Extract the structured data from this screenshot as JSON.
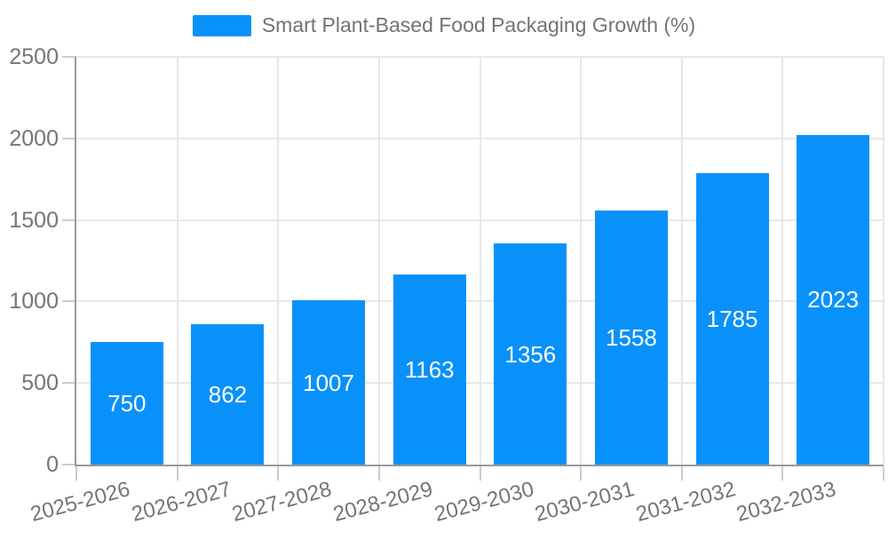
{
  "legend": {
    "label": "Smart Plant-Based Food Packaging Growth (%)"
  },
  "chart_data": {
    "type": "bar",
    "title": "Smart Plant-Based Food Packaging Growth (%)",
    "categories": [
      "2025-2026",
      "2026-2027",
      "2027-2028",
      "2028-2029",
      "2029-2030",
      "2030-2031",
      "2031-2032",
      "2032-2033"
    ],
    "values": [
      750,
      862,
      1007,
      1163,
      1356,
      1558,
      1785,
      2023
    ],
    "xlabel": "",
    "ylabel": "",
    "ylim": [
      0,
      2500
    ],
    "yticks": [
      0,
      500,
      1000,
      1500,
      2000,
      2500
    ],
    "legend_position": "top-center",
    "grid": "horizontal-and-vertical",
    "x_label_rotation_deg": -15,
    "bar_value_labels_inside": true,
    "colors": {
      "bar": "#0991fa",
      "bar_label_text": "#ffffff",
      "axis_line": "#9a9a9a",
      "grid_line": "#e8e8e8",
      "tick_mark": "#cccccc",
      "axis_text": "#757575",
      "legend_text": "#737373",
      "background": "#ffffff"
    }
  }
}
